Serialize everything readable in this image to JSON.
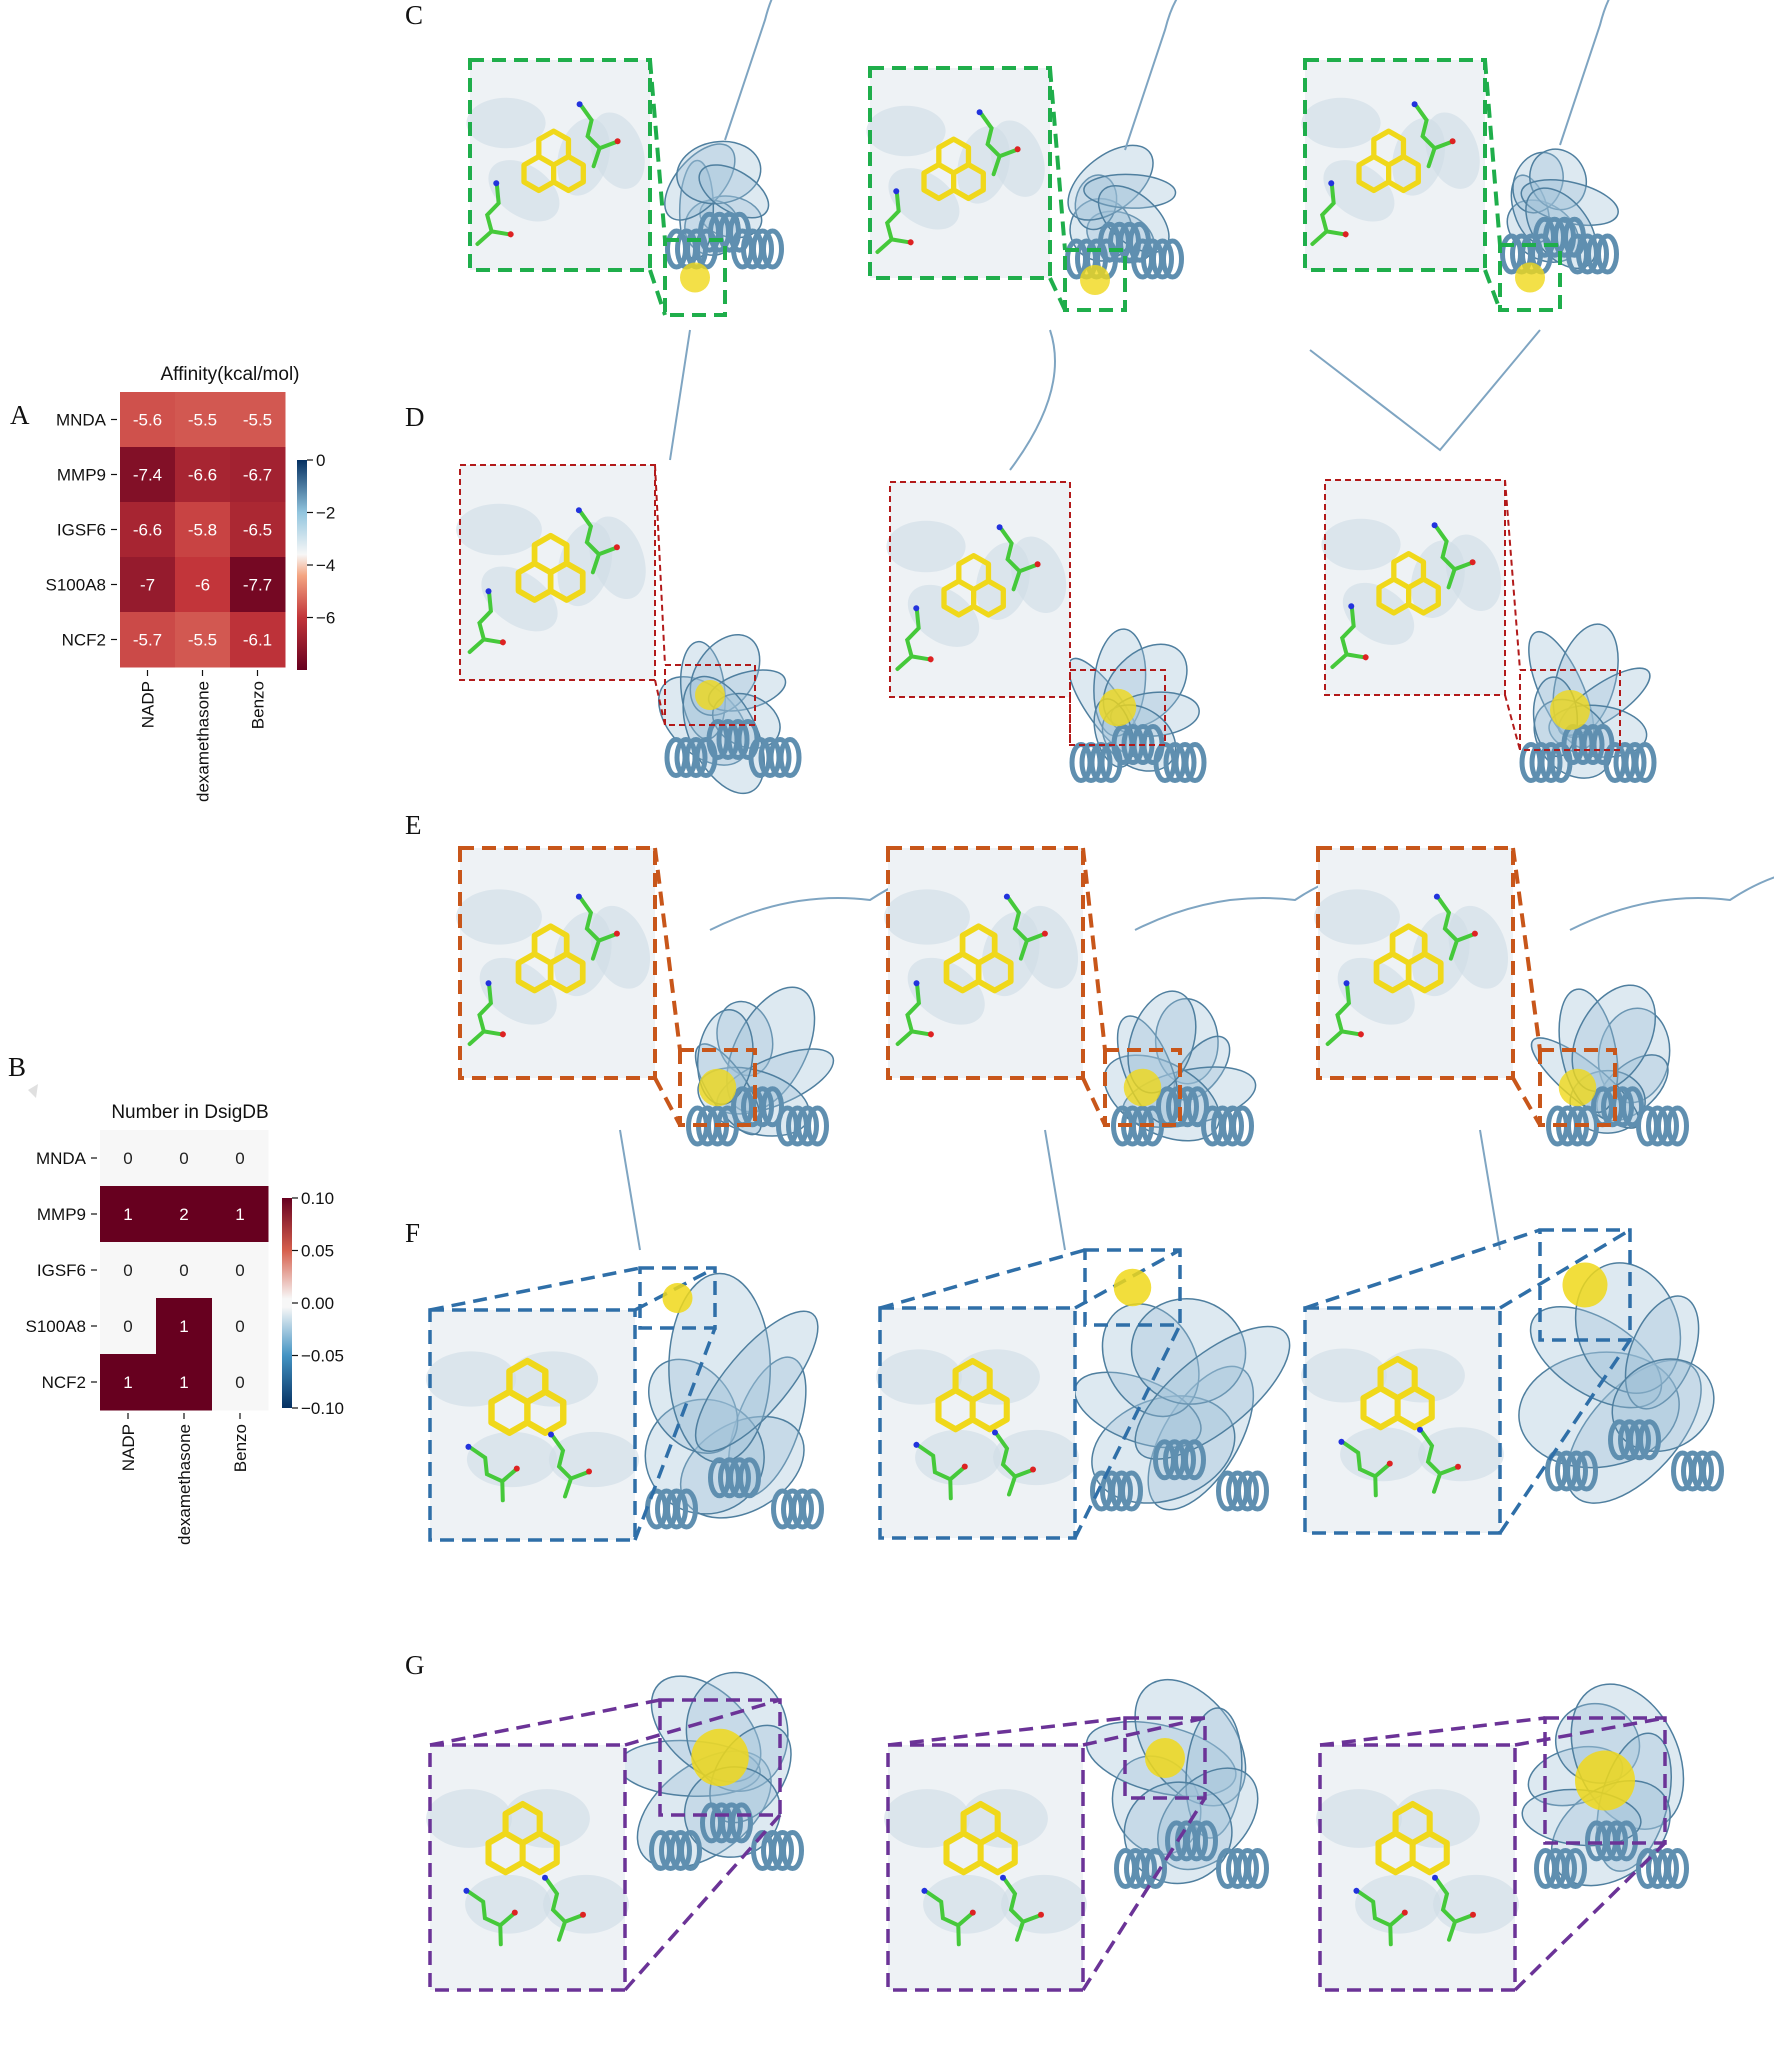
{
  "panels": {
    "A": "A",
    "B": "B",
    "C": "C",
    "D": "D",
    "E": "E",
    "F": "F",
    "G": "G"
  },
  "heatmap_a": {
    "title": "Affinity(kcal/mol)",
    "rows": [
      "MNDA",
      "MMP9",
      "IGSF6",
      "S100A8",
      "NCF2"
    ],
    "cols": [
      "NADP",
      "dexamethasone",
      "Benzo"
    ],
    "values": [
      [
        -5.6,
        -5.5,
        -5.5
      ],
      [
        -7.4,
        -6.6,
        -6.7
      ],
      [
        -6.6,
        -5.8,
        -6.5
      ],
      [
        -7,
        -6,
        -7.7
      ],
      [
        -5.7,
        -5.5,
        -6.1
      ]
    ],
    "colorbar_ticks": [
      "0",
      "−2",
      "−4",
      "−6"
    ],
    "colorbar_range": [
      -8,
      0
    ]
  },
  "heatmap_b": {
    "title": "Number in DsigDB",
    "rows": [
      "MNDA",
      "MMP9",
      "IGSF6",
      "S100A8",
      "NCF2"
    ],
    "cols": [
      "NADP",
      "dexamethasone",
      "Benzo"
    ],
    "values": [
      [
        0,
        0,
        0
      ],
      [
        1,
        2,
        1
      ],
      [
        0,
        0,
        0
      ],
      [
        0,
        1,
        0
      ],
      [
        1,
        1,
        0
      ]
    ],
    "colorbar_ticks": [
      "0.10",
      "0.05",
      "0.00",
      "−0.05",
      "−0.10"
    ],
    "colorbar_range": [
      -0.1,
      0.1
    ]
  },
  "chart_data": [
    {
      "type": "heatmap",
      "title": "Affinity(kcal/mol)",
      "rows": [
        "MNDA",
        "MMP9",
        "IGSF6",
        "S100A8",
        "NCF2"
      ],
      "cols": [
        "NADP",
        "dexamethasone",
        "Benzo"
      ],
      "values": [
        [
          -5.6,
          -5.5,
          -5.5
        ],
        [
          -7.4,
          -6.6,
          -6.7
        ],
        [
          -6.6,
          -5.8,
          -6.5
        ],
        [
          -7,
          -6,
          -7.7
        ],
        [
          -5.7,
          -5.5,
          -6.1
        ]
      ],
      "colorbar_range": [
        -8,
        0
      ]
    },
    {
      "type": "heatmap",
      "title": "Number in DsigDB",
      "rows": [
        "MNDA",
        "MMP9",
        "IGSF6",
        "S100A8",
        "NCF2"
      ],
      "cols": [
        "NADP",
        "dexamethasone",
        "Benzo"
      ],
      "values": [
        [
          0,
          0,
          0
        ],
        [
          1,
          2,
          1
        ],
        [
          0,
          0,
          0
        ],
        [
          0,
          1,
          0
        ],
        [
          1,
          1,
          0
        ]
      ],
      "colorbar_range": [
        -0.1,
        0.1
      ]
    }
  ],
  "colors": {
    "green": "#1fae4b",
    "red": "#b21a1a",
    "orange": "#c8561a",
    "blue": "#2f6fa8",
    "purple": "#6b3397",
    "protein": "#9fbfd6",
    "ligand": "#f0d81a",
    "residue": "#45c93a"
  }
}
